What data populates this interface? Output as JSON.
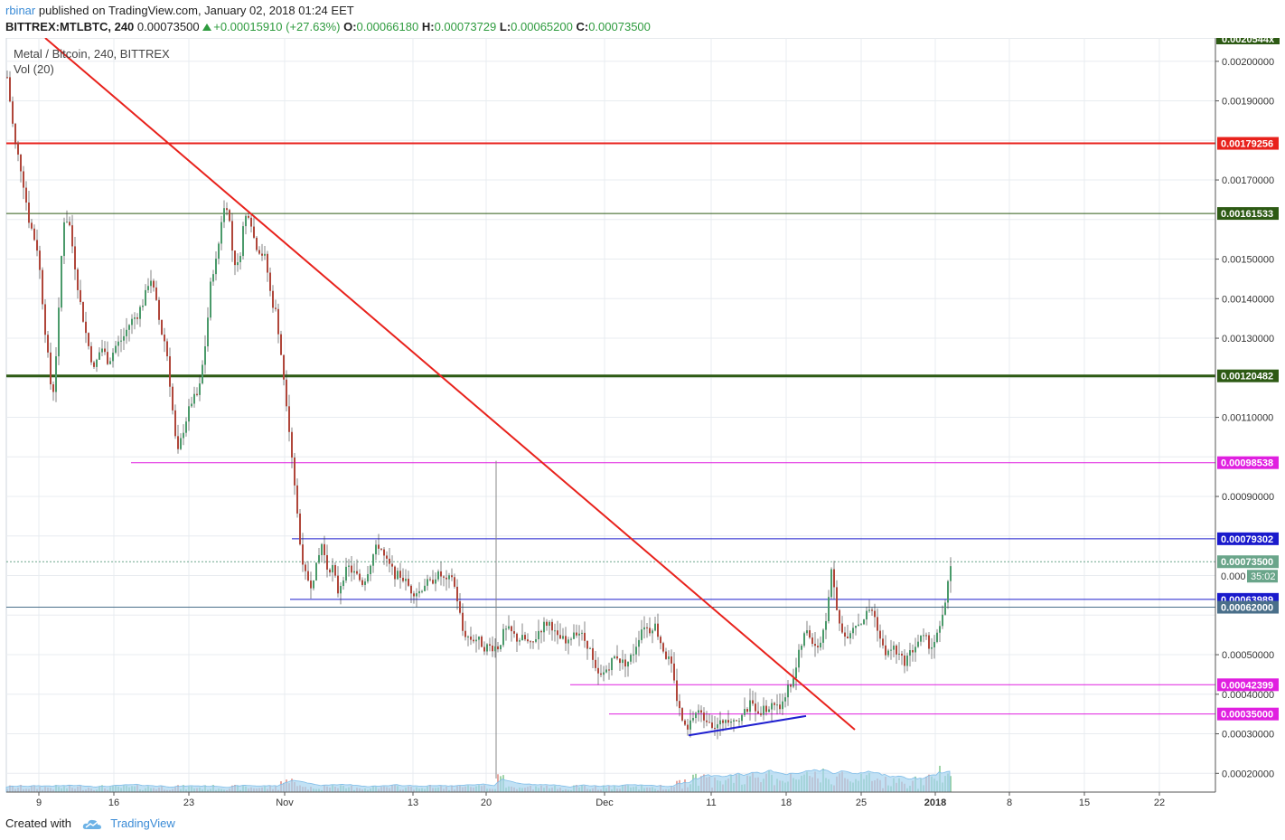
{
  "header": {
    "user": "rbinar",
    "published": " published on TradingView.com, January 02, 2018 01:24 EET",
    "symbol": "BITTREX:MTLBTC, 240",
    "last": "0.00073500",
    "change": "+0.00015910 (+27.63%)",
    "o_label": "O:",
    "o": "0.00066180",
    "h_label": "H:",
    "h": "0.00073729",
    "l_label": "L:",
    "l": "0.00065200",
    "c_label": "C:",
    "c": "0.00073500"
  },
  "legend": {
    "title": "Metal / Bitcoin, 240, BITTREX",
    "volume": "Vol (20)"
  },
  "footer": {
    "created": "Created with",
    "brand": "TradingView"
  },
  "colors": {
    "up": "#4a9a6a",
    "down": "#b0463a",
    "red_line": "#e8221c",
    "green_line": "#2d5a14",
    "magenta_line": "#e020e0",
    "blue_line": "#2020d0",
    "volume_ma": "#a8d4f0",
    "grid": "#e8ecf0"
  },
  "chart_data": {
    "type": "candlestick",
    "title": "Metal / Bitcoin, 240, BITTREX",
    "ylim": [
      0.00016,
      0.00206
    ],
    "y_ticks": [
      "0.00200000",
      "0.00190000",
      "0.00170000",
      "0.00150000",
      "0.00140000",
      "0.00130000",
      "0.00110000",
      "0.00090000",
      "0.00050000",
      "0.00040000",
      "0.00030000",
      "0.00020000"
    ],
    "x_ticks": [
      "9",
      "16",
      "23",
      "Nov",
      "13",
      "20",
      "Dec",
      "11",
      "18",
      "25",
      "2018",
      "8",
      "15",
      "22"
    ],
    "price_labels": [
      {
        "value": "0.00179256",
        "color": "#e8221c",
        "line": "#e8221c",
        "style": "solid",
        "width": 2
      },
      {
        "value": "0.00161533",
        "color": "#2d5a14",
        "line": "#2d5a14",
        "style": "solid",
        "width": 1
      },
      {
        "value": "0.00120482",
        "color": "#2d5a14",
        "line": "#2d5a14",
        "style": "solid",
        "width": 3
      },
      {
        "value": "0.00098538",
        "color": "#e020e0",
        "line": "#e020e0",
        "style": "solid",
        "width": 1
      },
      {
        "value": "0.00079302",
        "color": "#1a1acc",
        "line": "#1a1acc",
        "style": "solid",
        "width": 1
      },
      {
        "value": "0.00073500",
        "color": "#6aa58a",
        "line": "#6aa58a",
        "style": "dotted",
        "width": 1
      },
      {
        "value": "0.00063989",
        "color": "#1a1acc",
        "line": "#1a1acc",
        "style": "solid",
        "width": 1
      },
      {
        "value": "0.00062000",
        "color": "#4a6f8a",
        "line": "#4a6f8a",
        "style": "solid",
        "width": 1
      },
      {
        "value": "0.00042399",
        "color": "#e020e0",
        "line": "#e020e0",
        "style": "solid",
        "width": 1
      },
      {
        "value": "0.00035000",
        "color": "#e020e0",
        "line": "#e020e0",
        "style": "solid",
        "width": 1
      }
    ],
    "countdown": "35:02",
    "countdown_partial": "0.000",
    "top_partial": "0.0020544x",
    "series_anchors": [
      [
        0,
        0.00196
      ],
      [
        8,
        0.0018
      ],
      [
        16,
        0.00172
      ],
      [
        24,
        0.0016
      ],
      [
        34,
        0.00152
      ],
      [
        42,
        0.00132
      ],
      [
        50,
        0.00114
      ],
      [
        56,
        0.00132
      ],
      [
        62,
        0.0016
      ],
      [
        68,
        0.0016
      ],
      [
        74,
        0.0015
      ],
      [
        80,
        0.0014
      ],
      [
        88,
        0.0013
      ],
      [
        96,
        0.00122
      ],
      [
        104,
        0.00128
      ],
      [
        112,
        0.00124
      ],
      [
        120,
        0.00128
      ],
      [
        128,
        0.0013
      ],
      [
        136,
        0.00134
      ],
      [
        144,
        0.00136
      ],
      [
        152,
        0.0014
      ],
      [
        158,
        0.00146
      ],
      [
        164,
        0.0014
      ],
      [
        170,
        0.00132
      ],
      [
        176,
        0.00128
      ],
      [
        182,
        0.00114
      ],
      [
        188,
        0.001
      ],
      [
        196,
        0.00108
      ],
      [
        204,
        0.00114
      ],
      [
        212,
        0.00116
      ],
      [
        220,
        0.0013
      ],
      [
        226,
        0.00146
      ],
      [
        232,
        0.0015
      ],
      [
        238,
        0.00162
      ],
      [
        244,
        0.00164
      ],
      [
        250,
        0.0015
      ],
      [
        256,
        0.00148
      ],
      [
        262,
        0.0016
      ],
      [
        268,
        0.00162
      ],
      [
        274,
        0.00154
      ],
      [
        280,
        0.00152
      ],
      [
        286,
        0.0015
      ],
      [
        292,
        0.0014
      ],
      [
        298,
        0.00136
      ],
      [
        304,
        0.00124
      ],
      [
        310,
        0.00112
      ],
      [
        316,
        0.00098
      ],
      [
        320,
        0.00088
      ],
      [
        324,
        0.00078
      ],
      [
        330,
        0.0007
      ],
      [
        336,
        0.00068
      ],
      [
        342,
        0.00072
      ],
      [
        348,
        0.00078
      ],
      [
        354,
        0.00072
      ],
      [
        360,
        0.00072
      ],
      [
        366,
        0.00066
      ],
      [
        372,
        0.0007
      ],
      [
        378,
        0.00072
      ],
      [
        386,
        0.0007
      ],
      [
        394,
        0.00068
      ],
      [
        400,
        0.00072
      ],
      [
        406,
        0.00076
      ],
      [
        412,
        0.00078
      ],
      [
        418,
        0.00074
      ],
      [
        424,
        0.00072
      ],
      [
        430,
        0.0007
      ],
      [
        436,
        0.0007
      ],
      [
        442,
        0.00068
      ],
      [
        448,
        0.00066
      ],
      [
        456,
        0.00066
      ],
      [
        462,
        0.00068
      ],
      [
        468,
        0.00068
      ],
      [
        474,
        0.0007
      ],
      [
        480,
        0.0007
      ],
      [
        486,
        0.00068
      ],
      [
        492,
        0.0007
      ],
      [
        498,
        0.00064
      ],
      [
        504,
        0.00056
      ],
      [
        512,
        0.00054
      ],
      [
        520,
        0.00054
      ],
      [
        528,
        0.00052
      ],
      [
        536,
        0.00052
      ],
      [
        544,
        0.00052
      ],
      [
        550,
        0.00056
      ],
      [
        556,
        0.00056
      ],
      [
        564,
        0.00054
      ],
      [
        572,
        0.00054
      ],
      [
        580,
        0.00052
      ],
      [
        588,
        0.00056
      ],
      [
        596,
        0.00058
      ],
      [
        602,
        0.00058
      ],
      [
        608,
        0.00054
      ],
      [
        614,
        0.00054
      ],
      [
        620,
        0.00052
      ],
      [
        626,
        0.00056
      ],
      [
        632,
        0.00056
      ],
      [
        638,
        0.00054
      ],
      [
        644,
        0.00052
      ],
      [
        650,
        0.00046
      ],
      [
        656,
        0.00044
      ],
      [
        662,
        0.00046
      ],
      [
        668,
        0.00048
      ],
      [
        674,
        0.0005
      ],
      [
        680,
        0.00048
      ],
      [
        686,
        0.00048
      ],
      [
        692,
        0.0005
      ],
      [
        698,
        0.00054
      ],
      [
        704,
        0.00058
      ],
      [
        710,
        0.00056
      ],
      [
        716,
        0.00058
      ],
      [
        722,
        0.00054
      ],
      [
        728,
        0.0005
      ],
      [
        734,
        0.00048
      ],
      [
        740,
        0.0004
      ],
      [
        746,
        0.00034
      ],
      [
        752,
        0.0003
      ],
      [
        758,
        0.00034
      ],
      [
        764,
        0.00036
      ],
      [
        770,
        0.00034
      ],
      [
        776,
        0.00034
      ],
      [
        782,
        0.00032
      ],
      [
        788,
        0.00032
      ],
      [
        794,
        0.00034
      ],
      [
        800,
        0.00034
      ],
      [
        806,
        0.00034
      ],
      [
        812,
        0.00034
      ],
      [
        818,
        0.00036
      ],
      [
        824,
        0.00038
      ],
      [
        830,
        0.00036
      ],
      [
        836,
        0.00036
      ],
      [
        842,
        0.00036
      ],
      [
        848,
        0.00038
      ],
      [
        854,
        0.00036
      ],
      [
        860,
        0.0004
      ],
      [
        866,
        0.00042
      ],
      [
        872,
        0.00046
      ],
      [
        878,
        0.00052
      ],
      [
        884,
        0.00056
      ],
      [
        890,
        0.00054
      ],
      [
        896,
        0.00052
      ],
      [
        902,
        0.00054
      ],
      [
        908,
        0.00062
      ],
      [
        912,
        0.00072
      ],
      [
        916,
        0.00064
      ],
      [
        920,
        0.00058
      ],
      [
        926,
        0.00054
      ],
      [
        932,
        0.00056
      ],
      [
        938,
        0.00058
      ],
      [
        944,
        0.00058
      ],
      [
        950,
        0.0006
      ],
      [
        956,
        0.00062
      ],
      [
        962,
        0.00058
      ],
      [
        968,
        0.00052
      ],
      [
        974,
        0.0005
      ],
      [
        980,
        0.00052
      ],
      [
        986,
        0.0005
      ],
      [
        992,
        0.00048
      ],
      [
        998,
        0.0005
      ],
      [
        1004,
        0.00052
      ],
      [
        1010,
        0.00054
      ],
      [
        1016,
        0.00054
      ],
      [
        1022,
        0.00052
      ],
      [
        1028,
        0.00054
      ],
      [
        1034,
        0.00058
      ],
      [
        1040,
        0.00066
      ],
      [
        1045,
        0.000735
      ]
    ]
  }
}
